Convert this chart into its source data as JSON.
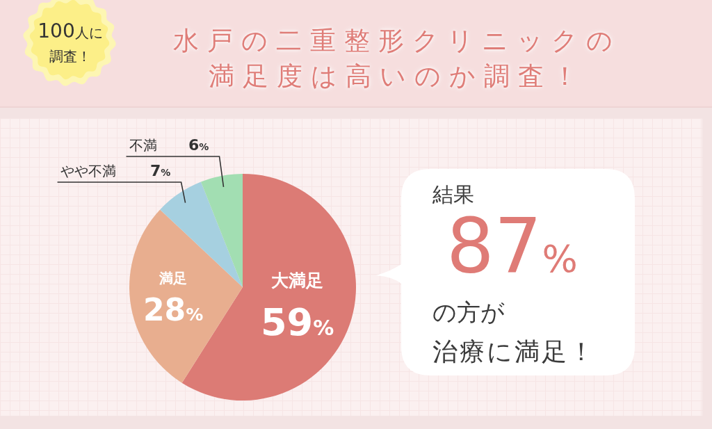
{
  "chart_data": {
    "type": "pie",
    "title": "水戸の二重整形クリニックの満足度は高いのか調査！",
    "categories": [
      "大満足",
      "満足",
      "やや不満",
      "不満"
    ],
    "values": [
      59,
      28,
      7,
      6
    ],
    "value_labels": [
      "59%",
      "28%",
      "7%",
      "6%"
    ],
    "colors": [
      "#dc7b75",
      "#e8ae8f",
      "#a6d0e0",
      "#a2deb2"
    ],
    "annotations": [
      "100人に調査！",
      "結果",
      "87%",
      "の方が",
      "治療に満足！"
    ]
  }
}
